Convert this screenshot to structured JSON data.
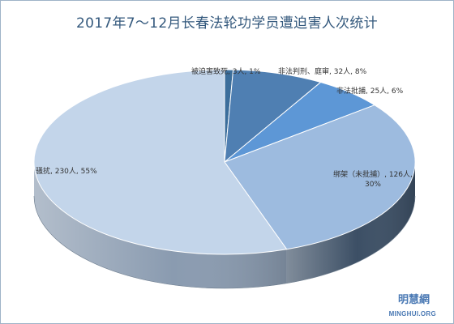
{
  "chart_data": {
    "type": "pie",
    "title": "2017年7～12月长春法轮功学员遭迫害人次统计",
    "slices": [
      {
        "label": "被迫害致死, 3人, 1%",
        "value": 3,
        "color": "#3c6e9b",
        "side": "#2a4d6b"
      },
      {
        "label": "非法判刑、庭审, 32人, 8%",
        "value": 32,
        "color": "#4f7fb2",
        "side": "#35577a"
      },
      {
        "label": "非法批捕, 25人, 6%",
        "value": 25,
        "color": "#5d97d6",
        "side": "#3e6896"
      },
      {
        "label": "绑架（未批捕）, 126人, 30%",
        "value": 126,
        "color": "#9dbbdf",
        "side": "#3c4f65"
      },
      {
        "label": "骚扰, 230人, 55%",
        "value": 230,
        "color": "#c3d5ea",
        "side": "#8a9bb0"
      }
    ]
  },
  "watermark": {
    "name": "明慧網",
    "site": "MINGHUI.ORG"
  }
}
